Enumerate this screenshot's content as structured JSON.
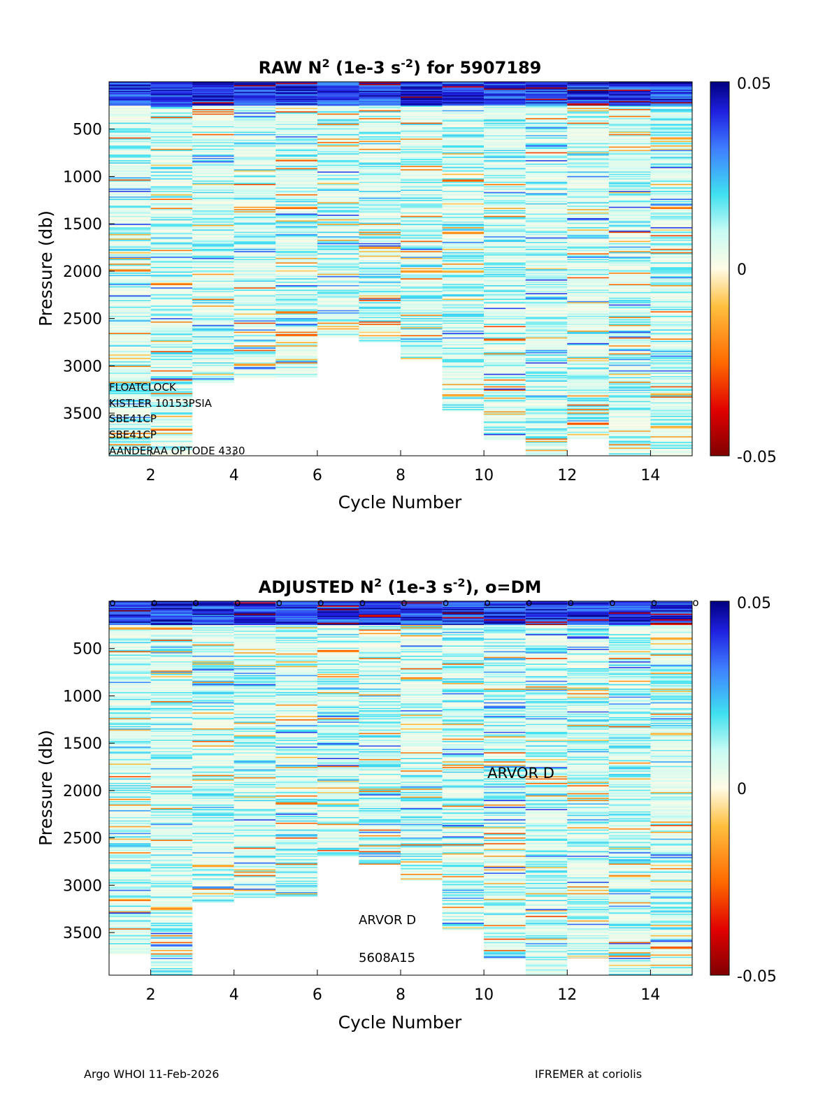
{
  "chart_data": [
    {
      "type": "heatmap",
      "id": "raw",
      "title_main": "RAW N",
      "title_sup1": "2",
      "title_mid": " (1e-3 s",
      "title_sup2": "-2",
      "title_end": ") for 5907189",
      "xlabel": "Cycle Number",
      "ylabel": "Pressure (db)",
      "xlim": [
        1,
        15
      ],
      "ylim": [
        0,
        3950
      ],
      "xticks": [
        "2",
        "4",
        "6",
        "8",
        "10",
        "12",
        "14"
      ],
      "yticks": [
        "500",
        "1000",
        "1500",
        "2000",
        "2500",
        "3000",
        "3500"
      ],
      "cycles": [
        1,
        2,
        3,
        4,
        5,
        6,
        7,
        8,
        9,
        10,
        11,
        12,
        13,
        14
      ],
      "max_pressure": [
        3950,
        3950,
        3180,
        3130,
        3120,
        2700,
        2750,
        2950,
        3480,
        3780,
        3950,
        3770,
        3950,
        3950
      ],
      "colorbar": {
        "min": "-0.05",
        "mid": "0",
        "max": "0.05"
      },
      "annotations": [
        "FLOATCLOCK",
        "KISTLER 10153PSIA",
        "SBE41CP",
        "SBE41CP",
        "AANDERAA OPTODE 4330"
      ]
    },
    {
      "type": "heatmap",
      "id": "adjusted",
      "title_main": "ADJUSTED N",
      "title_sup1": "2",
      "title_mid": " (1e-3 s",
      "title_sup2": "-2",
      "title_end": "), o=DM",
      "xlabel": "Cycle Number",
      "ylabel": "Pressure (db)",
      "xlim": [
        1,
        15
      ],
      "ylim": [
        0,
        3950
      ],
      "xticks": [
        "2",
        "4",
        "6",
        "8",
        "10",
        "12",
        "14"
      ],
      "yticks": [
        "500",
        "1000",
        "1500",
        "2000",
        "2500",
        "3000",
        "3500"
      ],
      "cycles": [
        1,
        2,
        3,
        4,
        5,
        6,
        7,
        8,
        9,
        10,
        11,
        12,
        13,
        14
      ],
      "max_pressure": [
        3730,
        3950,
        3180,
        3130,
        3120,
        2700,
        2780,
        2950,
        3480,
        3780,
        3950,
        3770,
        3950,
        3950
      ],
      "dm_marker": "o",
      "dm_cycles": [
        1,
        2,
        3,
        4,
        5,
        6,
        7,
        8,
        9,
        10,
        11,
        12,
        13,
        14,
        15
      ],
      "colorbar": {
        "min": "-0.05",
        "mid": "0",
        "max": "0.05"
      },
      "annotation_center": "ARVOR D",
      "annotation_model": "ARVOR D",
      "annotation_serial": "5608A15"
    }
  ],
  "footer": {
    "left": "Argo WHOI 11-Feb-2026",
    "right": "IFREMER at coriolis"
  }
}
